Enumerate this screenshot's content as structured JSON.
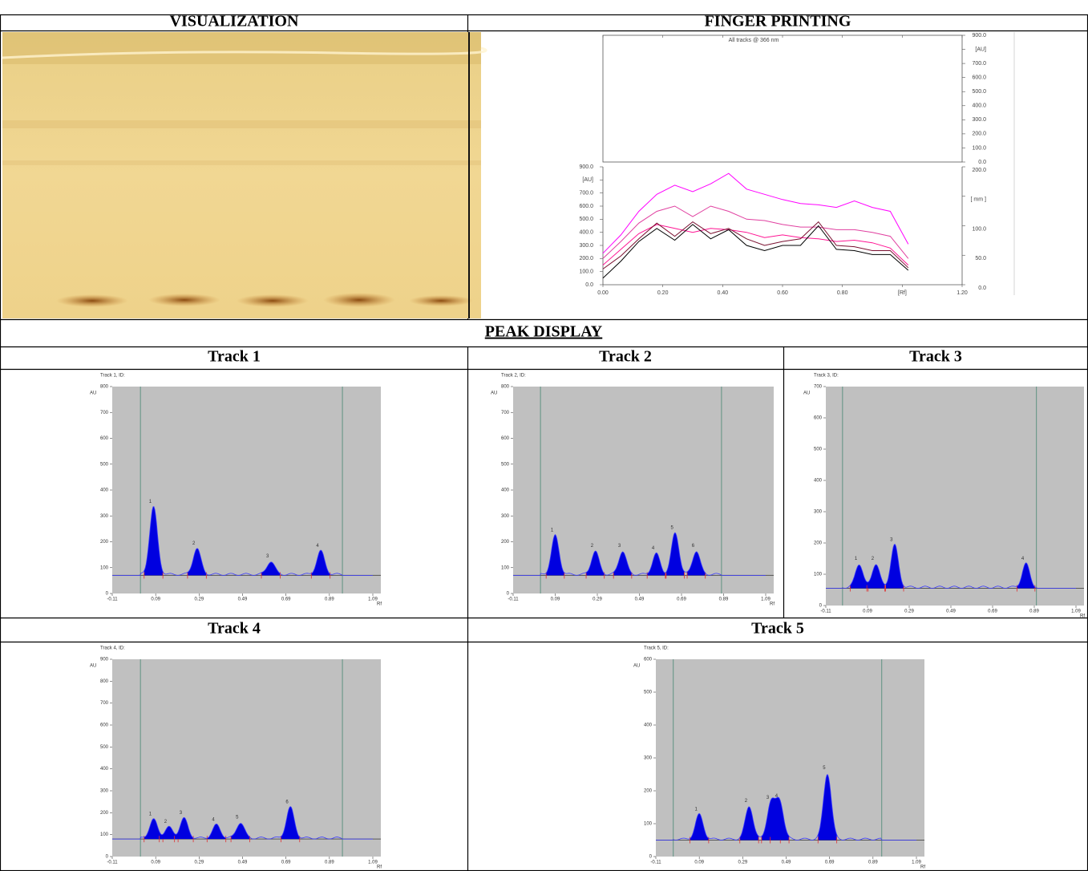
{
  "table": {
    "visualization": "VISUALIZATION",
    "finger_printing": "FINGER PRINTING",
    "peak_display": "PEAK DISPLAY",
    "tracks": [
      "Track 1",
      "Track 2",
      "Track 3",
      "Track 4",
      "Track 5"
    ]
  },
  "chart_data": [
    {
      "type": "line",
      "title": "All tracks @ 366 nm",
      "x": [
        0,
        0.06,
        0.12,
        0.18,
        0.24,
        0.3,
        0.36,
        0.42,
        0.48,
        0.54,
        0.6,
        0.66,
        0.72,
        0.78,
        0.84,
        0.9,
        0.96,
        1.02
      ],
      "xlim": [
        0,
        1.2
      ],
      "xticks": [
        {
          "value": 0,
          "label": "0.00"
        },
        {
          "value": 0.2,
          "label": "0.20"
        },
        {
          "value": 0.4,
          "label": "0.40"
        },
        {
          "value": 0.6,
          "label": "0.60"
        },
        {
          "value": 0.8,
          "label": "0.80"
        },
        {
          "value": 1.0,
          "label": "[Rf]"
        },
        {
          "value": 1.2,
          "label": "1.20"
        }
      ],
      "ylim": [
        0,
        900
      ],
      "yticks": [
        {
          "value": 0,
          "label": "0.0"
        },
        {
          "value": 100,
          "label": "100.0"
        },
        {
          "value": 200,
          "label": "200.0"
        },
        {
          "value": 300,
          "label": "300.0"
        },
        {
          "value": 400,
          "label": "400.0"
        },
        {
          "value": 500,
          "label": "500.0"
        },
        {
          "value": 600,
          "label": "600.0"
        },
        {
          "value": 700,
          "label": "700.0"
        },
        {
          "value": 800,
          "label": "[AU]"
        },
        {
          "value": 900,
          "label": "900.0"
        }
      ],
      "upper_yticks": [
        {
          "value": 0,
          "label": "0.0"
        },
        {
          "value": 100,
          "label": "100.0"
        },
        {
          "value": 200,
          "label": "200.0"
        },
        {
          "value": 300,
          "label": "300.0"
        },
        {
          "value": 400,
          "label": "400.0"
        },
        {
          "value": 500,
          "label": "500.0"
        },
        {
          "value": 600,
          "label": "600.0"
        },
        {
          "value": 700,
          "label": "700.0"
        },
        {
          "value": 800,
          "label": "[AU]"
        },
        {
          "value": 900,
          "label": "900.0"
        }
      ],
      "y2lim": [
        0,
        200
      ],
      "y2ticks": [
        {
          "value": 0,
          "label": "0.0"
        },
        {
          "value": 50,
          "label": "50.0"
        },
        {
          "value": 100,
          "label": "100.0"
        },
        {
          "value": 150,
          "label": "[ mm ]"
        },
        {
          "value": 200,
          "label": "200.0"
        }
      ],
      "series": [
        {
          "color": "#ff00ff",
          "values": [
            240,
            380,
            560,
            690,
            760,
            710,
            770,
            850,
            730,
            690,
            650,
            620,
            610,
            590,
            640,
            590,
            560,
            310
          ]
        },
        {
          "color": "#e040a0",
          "values": [
            200,
            330,
            470,
            560,
            600,
            520,
            600,
            560,
            500,
            490,
            460,
            440,
            440,
            420,
            420,
            400,
            370,
            200
          ]
        },
        {
          "color": "#ff1493",
          "values": [
            150,
            270,
            390,
            460,
            430,
            400,
            430,
            420,
            400,
            360,
            380,
            360,
            350,
            330,
            340,
            320,
            280,
            150
          ]
        },
        {
          "color": "#7a1030",
          "values": [
            120,
            220,
            350,
            470,
            370,
            480,
            390,
            430,
            350,
            300,
            330,
            350,
            480,
            300,
            290,
            260,
            260,
            130
          ]
        },
        {
          "color": "#000000",
          "values": [
            50,
            180,
            330,
            430,
            340,
            460,
            350,
            420,
            300,
            260,
            300,
            300,
            450,
            270,
            260,
            230,
            230,
            110
          ]
        }
      ]
    },
    {
      "type": "area",
      "title": "Track 1, ID:",
      "y_label": "AU",
      "x_label": "Rf",
      "xlim": [
        -0.11,
        1.09
      ],
      "xticks": [
        -0.11,
        0.09,
        0.29,
        0.49,
        0.69,
        0.89,
        1.09
      ],
      "ylim": [
        0,
        800
      ],
      "yticks": [
        0,
        100,
        200,
        300,
        400,
        500,
        600,
        700,
        800
      ],
      "baseline": 70,
      "front_lines": [
        0.02,
        0.95
      ],
      "peaks": [
        {
          "label": "1",
          "rf": 0.08,
          "height": 330
        },
        {
          "label": "2",
          "rf": 0.28,
          "height": 170
        },
        {
          "label": "3",
          "rf": 0.62,
          "height": 120
        },
        {
          "label": "4",
          "rf": 0.85,
          "height": 160
        }
      ]
    },
    {
      "type": "area",
      "title": "Track 2, ID:",
      "y_label": "AU",
      "x_label": "Rf",
      "xlim": [
        -0.11,
        1.09
      ],
      "xticks": [
        -0.11,
        0.09,
        0.29,
        0.49,
        0.69,
        0.89,
        1.09
      ],
      "ylim": [
        0,
        800
      ],
      "yticks": [
        0,
        100,
        200,
        300,
        400,
        500,
        600,
        700,
        800
      ],
      "baseline": 70,
      "front_lines": [
        0.02,
        0.88
      ],
      "peaks": [
        {
          "label": "1",
          "rf": 0.09,
          "height": 220
        },
        {
          "label": "2",
          "rf": 0.28,
          "height": 160
        },
        {
          "label": "3",
          "rf": 0.41,
          "height": 160
        },
        {
          "label": "4",
          "rf": 0.57,
          "height": 150
        },
        {
          "label": "5",
          "rf": 0.66,
          "height": 230
        },
        {
          "label": "6",
          "rf": 0.76,
          "height": 160
        }
      ]
    },
    {
      "type": "area",
      "title": "Track 3, ID:",
      "y_label": "AU",
      "x_label": "Rf",
      "xlim": [
        -0.11,
        1.09
      ],
      "xticks": [
        -0.11,
        0.09,
        0.29,
        0.49,
        0.69,
        0.89,
        1.09
      ],
      "ylim": [
        0,
        700
      ],
      "yticks": [
        0,
        100,
        200,
        300,
        400,
        500,
        600,
        700
      ],
      "baseline": 55,
      "front_lines": [
        -0.03,
        0.9
      ],
      "peaks": [
        {
          "label": "1",
          "rf": 0.05,
          "height": 130
        },
        {
          "label": "2",
          "rf": 0.13,
          "height": 130
        },
        {
          "label": "3",
          "rf": 0.22,
          "height": 190
        },
        {
          "label": "4",
          "rf": 0.85,
          "height": 130
        }
      ]
    },
    {
      "type": "area",
      "title": "Track 4, ID:",
      "y_label": "AU",
      "x_label": "Rf",
      "xlim": [
        -0.11,
        1.09
      ],
      "xticks": [
        -0.11,
        0.09,
        0.29,
        0.49,
        0.69,
        0.89,
        1.09
      ],
      "ylim": [
        0,
        900
      ],
      "yticks": [
        0,
        100,
        200,
        300,
        400,
        500,
        600,
        700,
        800,
        900
      ],
      "baseline": 80,
      "front_lines": [
        0.02,
        0.95
      ],
      "peaks": [
        {
          "label": "1",
          "rf": 0.08,
          "height": 165
        },
        {
          "label": "2",
          "rf": 0.15,
          "height": 130
        },
        {
          "label": "3",
          "rf": 0.22,
          "height": 170
        },
        {
          "label": "4",
          "rf": 0.37,
          "height": 140
        },
        {
          "label": "5",
          "rf": 0.48,
          "height": 150
        },
        {
          "label": "6",
          "rf": 0.71,
          "height": 220
        }
      ]
    },
    {
      "type": "area",
      "title": "Track 5, ID:",
      "y_label": "AU",
      "x_label": "Rf",
      "xlim": [
        -0.11,
        1.09
      ],
      "xticks": [
        -0.11,
        0.09,
        0.29,
        0.49,
        0.69,
        0.89,
        1.09
      ],
      "ylim": [
        0,
        600
      ],
      "yticks": [
        0,
        100,
        200,
        300,
        400,
        500,
        600
      ],
      "baseline": 50,
      "front_lines": [
        -0.03,
        0.93
      ],
      "peaks": [
        {
          "label": "1",
          "rf": 0.09,
          "height": 125
        },
        {
          "label": "2",
          "rf": 0.32,
          "height": 150
        },
        {
          "label": "3",
          "rf": 0.42,
          "height": 160
        },
        {
          "label": "4",
          "rf": 0.46,
          "height": 165
        },
        {
          "label": "5",
          "rf": 0.68,
          "height": 250
        }
      ]
    }
  ]
}
